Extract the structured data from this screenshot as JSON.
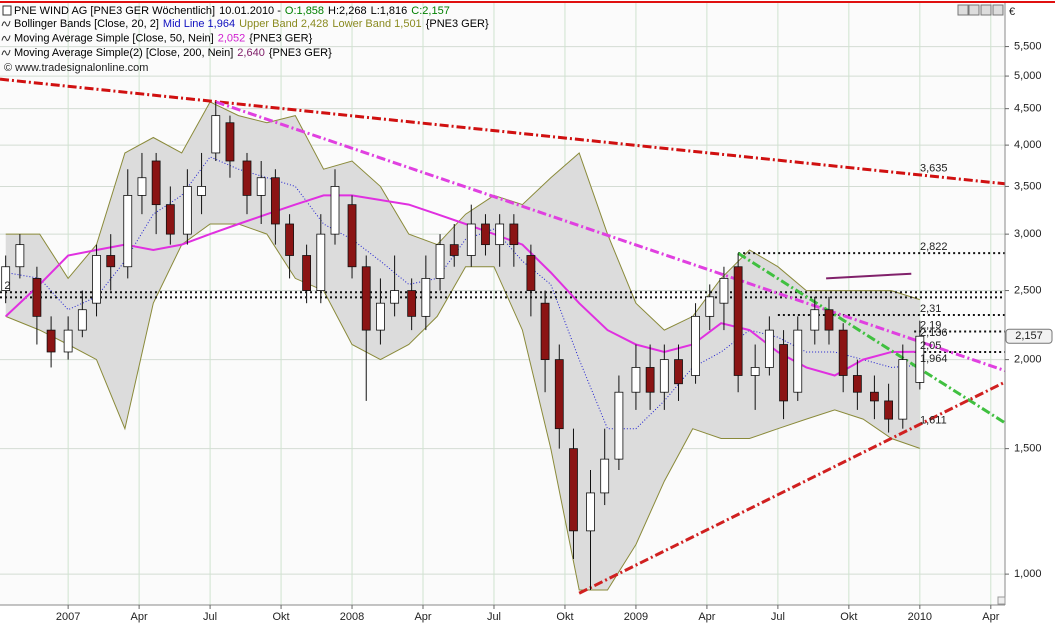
{
  "header": {
    "items": [
      {
        "text": "PNE WIND AG [PNE3 GER  Wöchentlich]",
        "color": "#000000"
      },
      {
        "text": "10.01.2010 -",
        "color": "#000000"
      },
      {
        "text": "O:1,858",
        "color": "#008000"
      },
      {
        "text": "H:2,268",
        "color": "#000000"
      },
      {
        "text": "L:1,816",
        "color": "#000000"
      },
      {
        "text": "C:2,157",
        "color": "#008000"
      }
    ],
    "indicators": [
      {
        "label": "Bollinger Bands [Close, 20, 2]",
        "parts": [
          {
            "text": "Mid Line 1,964",
            "color": "#1010c0"
          },
          {
            "text": "Upper Band 2,428",
            "color": "#8a8a20"
          },
          {
            "text": "Lower Band 1,501",
            "color": "#8a8a20"
          }
        ],
        "suffix": "{PNE3 GER}"
      },
      {
        "label": "Moving Average Simple [Close, 50, Nein]",
        "parts": [
          {
            "text": "2,052",
            "color": "#d020d0"
          }
        ],
        "suffix": "{PNE3 GER}"
      },
      {
        "label": "Moving Average Simple(2) [Close, 200, Nein]",
        "parts": [
          {
            "text": "2,640",
            "color": "#80206a"
          }
        ],
        "suffix": "{PNE3 GER}"
      }
    ],
    "copyright": "© www.tradesignalonline.com",
    "currency": "€"
  },
  "chart_data": {
    "type": "candlestick",
    "log_scale": true,
    "grid": true,
    "up_color": "#ffffff",
    "down_color": "#8b1414",
    "x": [
      2006.78,
      2006.83,
      2006.89,
      2006.94,
      2007.0,
      2007.05,
      2007.1,
      2007.15,
      2007.21,
      2007.26,
      2007.31,
      2007.36,
      2007.42,
      2007.47,
      2007.52,
      2007.57,
      2007.63,
      2007.68,
      2007.73,
      2007.78,
      2007.84,
      2007.89,
      2007.94,
      2008.0,
      2008.05,
      2008.1,
      2008.15,
      2008.21,
      2008.26,
      2008.31,
      2008.36,
      2008.42,
      2008.47,
      2008.52,
      2008.57,
      2008.63,
      2008.68,
      2008.73,
      2008.78,
      2008.84,
      2008.89,
      2008.94,
      2009.0,
      2009.05,
      2009.1,
      2009.15,
      2009.21,
      2009.26,
      2009.31,
      2009.36,
      2009.42,
      2009.47,
      2009.52,
      2009.57,
      2009.63,
      2009.68,
      2009.73,
      2009.78,
      2009.84,
      2009.89,
      2009.94,
      2010.0
    ],
    "open": [
      2.5,
      2.7,
      2.6,
      2.2,
      2.05,
      2.2,
      2.4,
      2.8,
      2.7,
      3.4,
      3.8,
      3.3,
      3.0,
      3.4,
      3.9,
      4.3,
      3.8,
      3.4,
      3.6,
      3.1,
      2.8,
      2.5,
      3.0,
      3.3,
      2.7,
      2.2,
      2.4,
      2.5,
      2.3,
      2.6,
      2.9,
      2.8,
      3.1,
      2.9,
      3.1,
      2.8,
      2.4,
      2.0,
      1.5,
      1.15,
      1.3,
      1.45,
      1.8,
      1.95,
      1.8,
      2.0,
      1.9,
      2.3,
      2.4,
      2.7,
      1.9,
      1.95,
      2.1,
      1.8,
      2.2,
      2.35,
      2.2,
      1.9,
      1.8,
      1.75,
      1.65,
      1.858
    ],
    "high": [
      2.8,
      3.0,
      2.7,
      2.3,
      2.3,
      2.5,
      2.9,
      3.0,
      3.7,
      3.9,
      3.9,
      3.5,
      3.7,
      3.9,
      4.6,
      4.4,
      3.9,
      3.8,
      3.7,
      3.2,
      2.9,
      3.2,
      3.7,
      3.4,
      2.8,
      2.6,
      2.8,
      2.6,
      2.8,
      3.0,
      3.1,
      3.3,
      3.2,
      3.2,
      3.2,
      2.9,
      2.5,
      2.1,
      1.6,
      1.4,
      1.6,
      1.9,
      2.1,
      2.1,
      2.1,
      2.1,
      2.4,
      2.55,
      2.7,
      2.82,
      2.1,
      2.3,
      2.2,
      2.3,
      2.45,
      2.45,
      2.25,
      2.0,
      1.9,
      1.85,
      2.1,
      2.268
    ],
    "low": [
      2.4,
      2.6,
      2.1,
      1.95,
      2.0,
      2.15,
      2.3,
      2.5,
      2.6,
      3.2,
      3.0,
      2.9,
      2.9,
      3.2,
      3.8,
      3.6,
      3.2,
      3.1,
      2.9,
      2.6,
      2.4,
      2.4,
      2.9,
      2.6,
      1.75,
      2.1,
      2.3,
      2.2,
      2.2,
      2.5,
      2.7,
      2.7,
      2.8,
      2.7,
      2.7,
      2.3,
      1.8,
      1.5,
      1.05,
      0.95,
      1.25,
      1.4,
      1.7,
      1.7,
      1.7,
      1.75,
      1.85,
      2.2,
      2.2,
      1.8,
      1.7,
      1.9,
      1.65,
      1.75,
      2.1,
      2.1,
      1.8,
      1.7,
      1.65,
      1.58,
      1.6,
      1.816
    ],
    "close": [
      2.7,
      2.9,
      2.3,
      2.05,
      2.2,
      2.35,
      2.8,
      2.7,
      3.4,
      3.6,
      3.3,
      3.0,
      3.5,
      3.5,
      4.4,
      3.8,
      3.4,
      3.6,
      3.1,
      2.8,
      2.5,
      3.0,
      3.5,
      2.7,
      2.2,
      2.4,
      2.5,
      2.3,
      2.6,
      2.9,
      2.8,
      3.1,
      2.9,
      3.1,
      2.9,
      2.5,
      2.0,
      1.6,
      1.15,
      1.3,
      1.45,
      1.8,
      1.95,
      1.8,
      2.0,
      1.85,
      2.3,
      2.45,
      2.6,
      1.9,
      1.95,
      2.2,
      1.75,
      2.2,
      2.35,
      2.2,
      1.9,
      1.8,
      1.75,
      1.65,
      2.0,
      2.157
    ],
    "bollinger": {
      "x": [
        2006.78,
        2006.9,
        2007.0,
        2007.1,
        2007.2,
        2007.3,
        2007.4,
        2007.5,
        2007.6,
        2007.7,
        2007.8,
        2007.9,
        2008.0,
        2008.1,
        2008.2,
        2008.3,
        2008.4,
        2008.5,
        2008.6,
        2008.7,
        2008.8,
        2008.9,
        2009.0,
        2009.1,
        2009.2,
        2009.3,
        2009.4,
        2009.5,
        2009.6,
        2009.7,
        2009.8,
        2009.9,
        2010.0
      ],
      "upper": [
        3.0,
        3.0,
        2.6,
        2.9,
        3.9,
        4.1,
        3.9,
        4.6,
        4.4,
        4.3,
        4.4,
        3.7,
        3.8,
        3.5,
        3.0,
        2.9,
        3.2,
        3.4,
        3.3,
        3.6,
        3.9,
        3.0,
        2.4,
        2.2,
        2.3,
        2.6,
        2.85,
        2.7,
        2.5,
        2.5,
        2.5,
        2.5,
        2.428
      ],
      "lower": [
        2.3,
        2.2,
        2.1,
        2.0,
        1.6,
        2.4,
        2.9,
        3.1,
        3.1,
        3.0,
        2.6,
        2.5,
        2.1,
        2.0,
        2.1,
        2.3,
        2.7,
        2.7,
        2.2,
        1.5,
        0.95,
        0.95,
        1.1,
        1.35,
        1.6,
        1.55,
        1.55,
        1.6,
        1.65,
        1.7,
        1.65,
        1.55,
        1.501
      ],
      "mid": [
        2.65,
        2.6,
        2.35,
        2.45,
        2.75,
        3.2,
        3.4,
        3.85,
        3.7,
        3.6,
        3.5,
        3.1,
        2.95,
        2.75,
        2.55,
        2.6,
        2.95,
        3.05,
        2.75,
        2.55,
        2.0,
        1.6,
        1.6,
        1.75,
        1.95,
        2.05,
        2.2,
        2.15,
        2.05,
        2.05,
        2.0,
        1.95,
        1.964
      ],
      "fill": "#dcdcdc",
      "band_color": "#8a8a3a",
      "mid_color": "#2020d0"
    },
    "ma50": {
      "x": [
        2006.78,
        2006.9,
        2007.0,
        2007.1,
        2007.2,
        2007.3,
        2007.4,
        2007.5,
        2007.6,
        2007.7,
        2007.8,
        2007.9,
        2008.0,
        2008.1,
        2008.2,
        2008.3,
        2008.4,
        2008.5,
        2008.6,
        2008.7,
        2008.8,
        2008.9,
        2009.0,
        2009.1,
        2009.2,
        2009.3,
        2009.4,
        2009.5,
        2009.6,
        2009.7,
        2009.8,
        2009.9,
        2010.0
      ],
      "values": [
        2.3,
        2.55,
        2.8,
        2.85,
        2.9,
        2.85,
        2.9,
        3.0,
        3.1,
        3.2,
        3.3,
        3.4,
        3.4,
        3.35,
        3.3,
        3.2,
        3.1,
        3.0,
        2.9,
        2.65,
        2.4,
        2.2,
        2.1,
        2.05,
        2.1,
        2.25,
        2.2,
        2.05,
        1.95,
        1.9,
        2.0,
        2.05,
        2.052
      ],
      "color": "#e030e0"
    },
    "ma200": {
      "x": [
        2009.67,
        2009.97
      ],
      "values": [
        2.6,
        2.64
      ],
      "color": "#80206a"
    },
    "trendlines": [
      {
        "x": [
          2006.76,
          2010.3
        ],
        "y": [
          4.95,
          3.53
        ],
        "color": "#d01010"
      },
      {
        "x": [
          2007.52,
          2010.3
        ],
        "y": [
          4.6,
          1.93
        ],
        "color": "#e040e0"
      },
      {
        "x": [
          2009.36,
          2010.3
        ],
        "y": [
          2.82,
          1.63
        ],
        "color": "#40c040"
      },
      {
        "x": [
          2008.8,
          2010.3
        ],
        "y": [
          0.94,
          1.86
        ],
        "color": "#d02020"
      }
    ],
    "levels": [
      {
        "x": [
          2009.36,
          2010.3
        ],
        "value": 2.822
      },
      {
        "x": [
          2006.76,
          2010.3
        ],
        "value": 2.486
      },
      {
        "x": [
          2006.76,
          2010.3
        ],
        "value": 2.446
      },
      {
        "x": [
          2009.5,
          2010.3
        ],
        "value": 2.31
      },
      {
        "x": [
          2009.98,
          2010.3
        ],
        "value": 2.19
      },
      {
        "x": [
          2009.98,
          2010.3
        ],
        "value": 2.05
      }
    ],
    "annotations": [
      {
        "x": 2009.99,
        "value": 3.635,
        "label": "3,635",
        "color": "#d01010"
      },
      {
        "x": 2009.99,
        "value": 2.822,
        "label": "2,822",
        "color": "#000000"
      },
      {
        "x": 2009.99,
        "value": 2.31,
        "label": "2,31",
        "color": "#000000"
      },
      {
        "x": 2009.99,
        "value": 2.136,
        "label": "2,136",
        "color": "#d020d0"
      },
      {
        "x": 2009.99,
        "value": 2.19,
        "label": "2,19",
        "color": "#000000"
      },
      {
        "x": 2009.99,
        "value": 2.05,
        "label": "2,05",
        "color": "#000000"
      },
      {
        "x": 2009.99,
        "value": 1.964,
        "label": "1,964",
        "color": "#30b030"
      },
      {
        "x": 2009.99,
        "value": 1.611,
        "label": "1,611",
        "color": "#d01010"
      },
      {
        "x": 2006.765,
        "value": 2.486,
        "label": "2",
        "color": "#000000"
      }
    ],
    "last": {
      "value": 2.157,
      "label": "2,157"
    },
    "xlim": [
      2006.76,
      2010.3
    ],
    "xticks": [
      {
        "value": 2007.0,
        "label": "2007"
      },
      {
        "value": 2007.25,
        "label": "Apr"
      },
      {
        "value": 2007.5,
        "label": "Jul"
      },
      {
        "value": 2007.75,
        "label": "Okt"
      },
      {
        "value": 2008.0,
        "label": "2008"
      },
      {
        "value": 2008.25,
        "label": "Apr"
      },
      {
        "value": 2008.5,
        "label": "Jul"
      },
      {
        "value": 2008.75,
        "label": "Okt"
      },
      {
        "value": 2009.0,
        "label": "2009"
      },
      {
        "value": 2009.25,
        "label": "Apr"
      },
      {
        "value": 2009.5,
        "label": "Jul"
      },
      {
        "value": 2009.75,
        "label": "Okt"
      },
      {
        "value": 2010.0,
        "label": "2010"
      },
      {
        "value": 2010.25,
        "label": "Apr"
      }
    ],
    "ylim": [
      0.905,
      6.19
    ],
    "yticks": [
      {
        "value": 1.0,
        "label": "1,000"
      },
      {
        "value": 1.5,
        "label": "1,500"
      },
      {
        "value": 2.0,
        "label": "2,000"
      },
      {
        "value": 2.5,
        "label": "2,500"
      },
      {
        "value": 3.0,
        "label": "3,000"
      },
      {
        "value": 3.5,
        "label": "3,500"
      },
      {
        "value": 4.0,
        "label": "4,000"
      },
      {
        "value": 4.5,
        "label": "4,500"
      },
      {
        "value": 5.0,
        "label": "5,000"
      },
      {
        "value": 5.5,
        "label": "5,500"
      }
    ]
  }
}
